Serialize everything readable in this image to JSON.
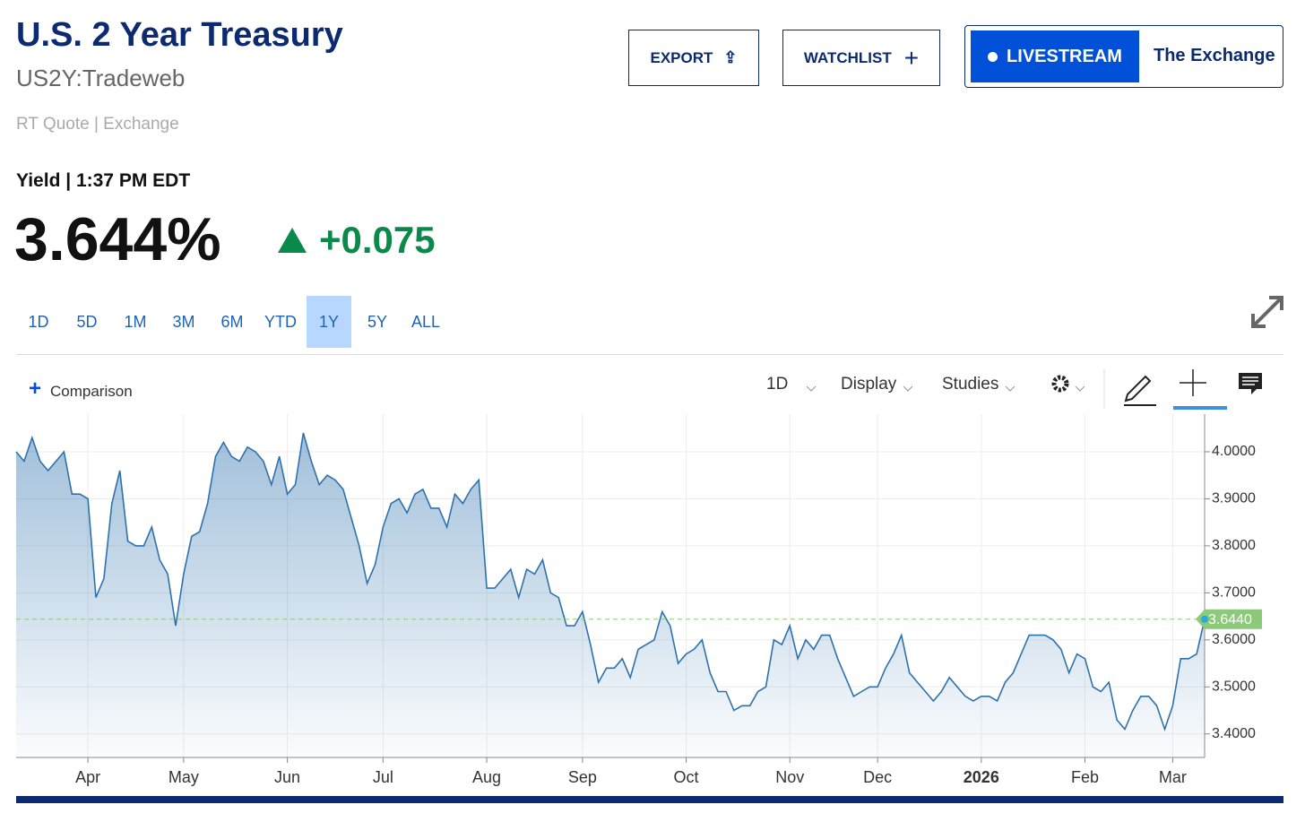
{
  "header": {
    "title": "U.S. 2 Year Treasury",
    "symbol": "US2Y:Tradeweb",
    "source": "RT Quote | Exchange",
    "yield_label": "Yield | 1:37 PM EDT",
    "price": "3.644%",
    "change": "+0.075"
  },
  "buttons": {
    "export": "EXPORT",
    "watchlist": "WATCHLIST",
    "livestream": "LIVESTREAM",
    "exchange": "The Exchange"
  },
  "ranges": [
    "1D",
    "5D",
    "1M",
    "3M",
    "6M",
    "YTD",
    "1Y",
    "5Y",
    "ALL"
  ],
  "selected_range": "1Y",
  "toolbar": {
    "comparison": "Comparison",
    "interval": "1D",
    "display": "Display",
    "studies": "Studies"
  },
  "chart_data": {
    "type": "area",
    "color": "#2e72ad",
    "values": [
      4.0,
      3.98,
      4.03,
      3.98,
      3.96,
      3.98,
      4.0,
      3.91,
      3.91,
      3.9,
      3.69,
      3.73,
      3.89,
      3.96,
      3.81,
      3.8,
      3.8,
      3.84,
      3.77,
      3.74,
      3.63,
      3.74,
      3.82,
      3.83,
      3.89,
      3.99,
      4.02,
      3.99,
      3.98,
      4.01,
      4.0,
      3.98,
      3.93,
      3.99,
      3.91,
      3.93,
      4.04,
      3.98,
      3.93,
      3.95,
      3.94,
      3.92,
      3.86,
      3.8,
      3.72,
      3.76,
      3.84,
      3.89,
      3.9,
      3.87,
      3.91,
      3.92,
      3.88,
      3.88,
      3.84,
      3.91,
      3.89,
      3.92,
      3.94,
      3.71,
      3.71,
      3.73,
      3.75,
      3.69,
      3.75,
      3.74,
      3.77,
      3.7,
      3.69,
      3.63,
      3.63,
      3.66,
      3.59,
      3.51,
      3.54,
      3.54,
      3.56,
      3.52,
      3.58,
      3.59,
      3.6,
      3.66,
      3.63,
      3.55,
      3.57,
      3.58,
      3.6,
      3.53,
      3.49,
      3.49,
      3.45,
      3.46,
      3.46,
      3.49,
      3.5,
      3.6,
      3.59,
      3.63,
      3.56,
      3.6,
      3.58,
      3.61,
      3.61,
      3.56,
      3.52,
      3.48,
      3.49,
      3.5,
      3.5,
      3.54,
      3.57,
      3.61,
      3.53,
      3.51,
      3.49,
      3.47,
      3.49,
      3.52,
      3.5,
      3.48,
      3.47,
      3.48,
      3.48,
      3.47,
      3.51,
      3.53,
      3.57,
      3.61,
      3.61,
      3.61,
      3.6,
      3.58,
      3.53,
      3.57,
      3.56,
      3.5,
      3.49,
      3.51,
      3.43,
      3.41,
      3.45,
      3.48,
      3.48,
      3.46,
      3.41,
      3.46,
      3.56,
      3.56,
      3.57,
      3.644
    ],
    "xlim": [
      0,
      149
    ],
    "xticks": [
      {
        "value": 9,
        "label": "Apr"
      },
      {
        "value": 21,
        "label": "May"
      },
      {
        "value": 34,
        "label": "Jun"
      },
      {
        "value": 46,
        "label": "Jul"
      },
      {
        "value": 59,
        "label": "Aug"
      },
      {
        "value": 71,
        "label": "Sep"
      },
      {
        "value": 84,
        "label": "Oct"
      },
      {
        "value": 97,
        "label": "Nov"
      },
      {
        "value": 108,
        "label": "Dec"
      },
      {
        "value": 121,
        "label": "2026"
      },
      {
        "value": 134,
        "label": "Feb"
      },
      {
        "value": 145,
        "label": "Mar"
      }
    ],
    "ylim": [
      3.35,
      4.08
    ],
    "yticks": [
      {
        "value": 3.4,
        "label": "3.4000"
      },
      {
        "value": 3.5,
        "label": "3.5000"
      },
      {
        "value": 3.6,
        "label": "3.6000"
      },
      {
        "value": 3.7,
        "label": "3.7000"
      },
      {
        "value": 3.8,
        "label": "3.8000"
      },
      {
        "value": 3.9,
        "label": "3.9000"
      },
      {
        "value": 4.0,
        "label": "4.0000"
      }
    ],
    "reference_line": {
      "value": 3.644,
      "label": "3.6440",
      "color": "#8cc97a"
    },
    "grid": true,
    "y_axis_side": "right"
  }
}
